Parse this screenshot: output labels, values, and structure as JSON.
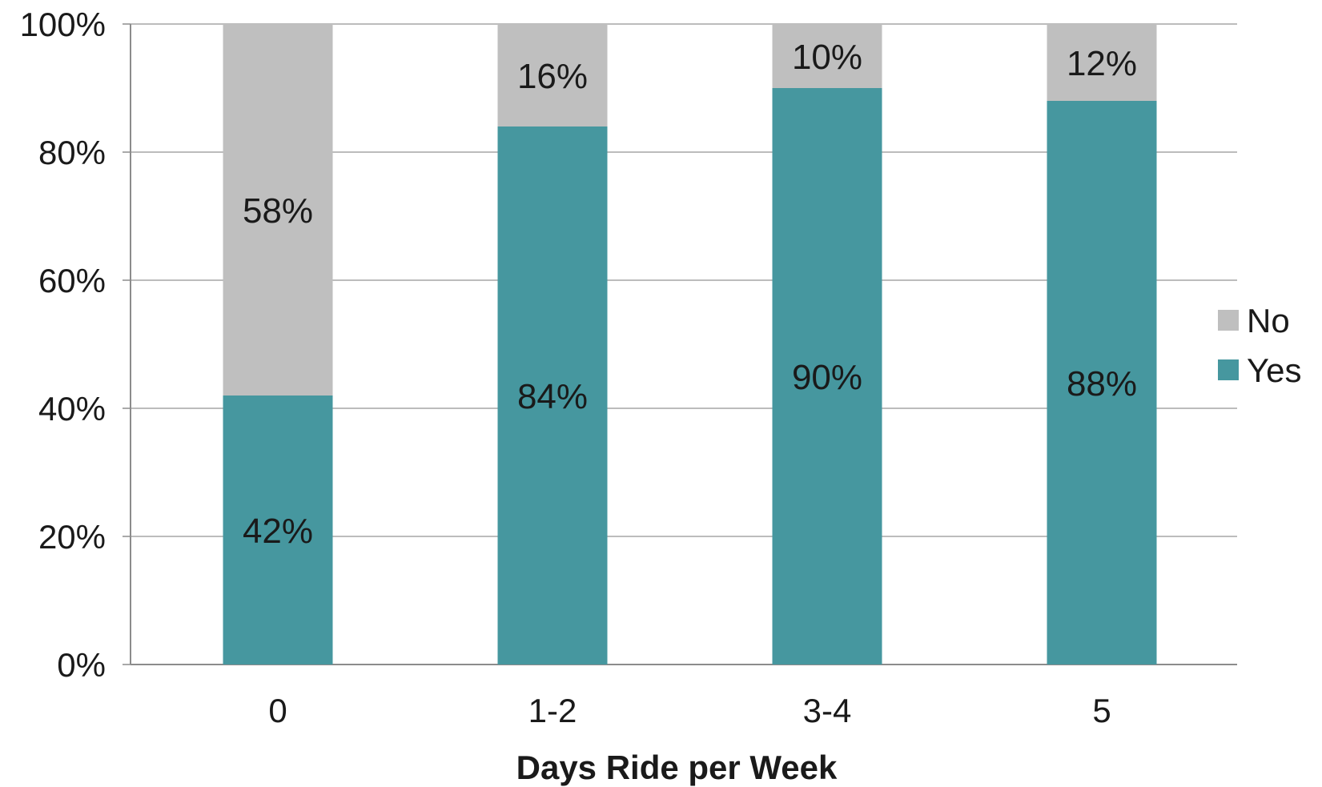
{
  "chart_data": {
    "type": "bar",
    "stacked": true,
    "categories": [
      "0",
      "1-2",
      "3-4",
      "5"
    ],
    "series": [
      {
        "name": "Yes",
        "values": [
          42,
          84,
          90,
          88
        ],
        "labels": [
          "42%",
          "84%",
          "90%",
          "88%"
        ],
        "color": "#46979f"
      },
      {
        "name": "No",
        "values": [
          58,
          16,
          10,
          12
        ],
        "labels": [
          "58%",
          "16%",
          "10%",
          "12%"
        ],
        "color": "#bfbfbf"
      }
    ],
    "legend_order": [
      "No",
      "Yes"
    ],
    "title": "",
    "xlabel": "Days Ride per Week",
    "ylabel": "",
    "ylim": [
      0,
      100
    ],
    "yticks": [
      0,
      20,
      40,
      60,
      80,
      100
    ],
    "ytick_labels": [
      "0%",
      "20%",
      "40%",
      "60%",
      "80%",
      "100%"
    ],
    "grid": true,
    "legend_position": "right"
  }
}
